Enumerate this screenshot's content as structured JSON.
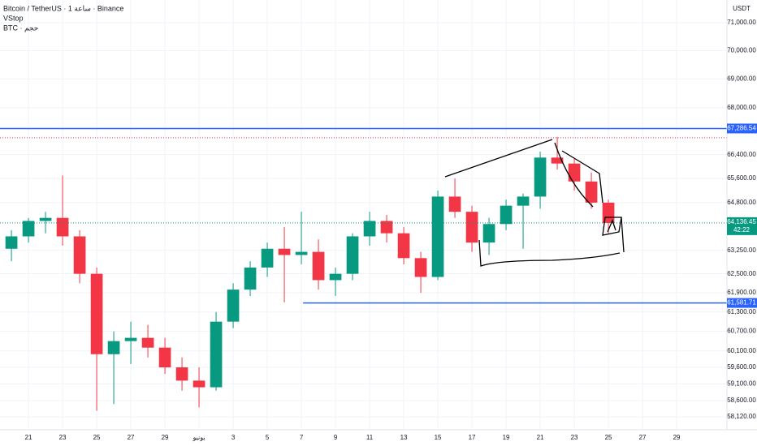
{
  "chart_data": {
    "type": "candlestick",
    "title": "Bitcoin / TetherUS · 1 ساعة · Binance",
    "indicator": "VStop",
    "volume_label": "BTC · حجم",
    "currency": "USDT",
    "log_scale": true,
    "grid": true,
    "up_color": "#089981",
    "down_color": "#f23645",
    "xlim": [
      -1.67,
      40.95
    ],
    "ylim": [
      57740,
      71824
    ],
    "xticks": [
      {
        "value": 0,
        "label": "21"
      },
      {
        "value": 2,
        "label": "23"
      },
      {
        "value": 4,
        "label": "25"
      },
      {
        "value": 6,
        "label": "27"
      },
      {
        "value": 8,
        "label": "29"
      },
      {
        "value": 10,
        "label": "يونيو"
      },
      {
        "value": 12,
        "label": "3"
      },
      {
        "value": 14,
        "label": "5"
      },
      {
        "value": 16,
        "label": "7"
      },
      {
        "value": 18,
        "label": "9"
      },
      {
        "value": 20,
        "label": "11"
      },
      {
        "value": 22,
        "label": "13"
      },
      {
        "value": 24,
        "label": "15"
      },
      {
        "value": 26,
        "label": "17"
      },
      {
        "value": 28,
        "label": "19"
      },
      {
        "value": 30,
        "label": "21"
      },
      {
        "value": 32,
        "label": "23"
      },
      {
        "value": 34,
        "label": "25"
      },
      {
        "value": 36,
        "label": "27"
      },
      {
        "value": 38,
        "label": "29"
      }
    ],
    "yticks": [
      {
        "value": 71000,
        "label": "71,000.00"
      },
      {
        "value": 70000,
        "label": "70,000.00"
      },
      {
        "value": 69000,
        "label": "69,000.00"
      },
      {
        "value": 68000,
        "label": "68,000.00"
      },
      {
        "value": 66400,
        "label": "66,400.00"
      },
      {
        "value": 65600,
        "label": "65,600.00"
      },
      {
        "value": 64800,
        "label": "64,800.00"
      },
      {
        "value": 63250,
        "label": "63,250.00"
      },
      {
        "value": 62500,
        "label": "62,500.00"
      },
      {
        "value": 61900,
        "label": "61,900.00"
      },
      {
        "value": 61300,
        "label": "61,300.00"
      },
      {
        "value": 60700,
        "label": "60,700.00"
      },
      {
        "value": 60100,
        "label": "60,100.00"
      },
      {
        "value": 59600,
        "label": "59,600.00"
      },
      {
        "value": 59100,
        "label": "59,100.00"
      },
      {
        "value": 58600,
        "label": "58,600.00"
      },
      {
        "value": 58120,
        "label": "58,120.00"
      }
    ],
    "x": [
      -1,
      0,
      1,
      2,
      3,
      4,
      5,
      6,
      7,
      8,
      9,
      10,
      11,
      12,
      13,
      14,
      15,
      16,
      17,
      18,
      19,
      20,
      21,
      22,
      23,
      24,
      25,
      26,
      27,
      28,
      29,
      30,
      31,
      32,
      33,
      34
    ],
    "open": [
      63300,
      63700,
      64200,
      64300,
      63700,
      62500,
      60000,
      60400,
      60500,
      60200,
      59600,
      59200,
      59000,
      61000,
      62000,
      62700,
      63300,
      63100,
      63200,
      62300,
      62500,
      63700,
      64200,
      63800,
      63000,
      62400,
      65000,
      64500,
      63500,
      64100,
      64700,
      65000,
      66300,
      66100,
      65500,
      64800
    ],
    "high": [
      63900,
      64300,
      64500,
      65700,
      63900,
      62700,
      60700,
      61000,
      60900,
      60500,
      59900,
      59600,
      61300,
      62200,
      62900,
      63500,
      64000,
      64500,
      63600,
      62700,
      63800,
      64500,
      64400,
      64000,
      63200,
      65200,
      65600,
      64700,
      64300,
      64900,
      65100,
      66500,
      67000,
      66300,
      65800,
      64900
    ],
    "low": [
      62900,
      63500,
      63800,
      63400,
      62200,
      58300,
      58500,
      59700,
      59900,
      59400,
      58900,
      58400,
      58900,
      60800,
      61800,
      62400,
      61600,
      62800,
      62000,
      61800,
      62300,
      63400,
      63500,
      62800,
      61900,
      62300,
      64300,
      63200,
      63100,
      63900,
      63300,
      64600,
      65900,
      65200,
      64600,
      63800
    ],
    "close": [
      63700,
      64200,
      64300,
      63700,
      62500,
      60000,
      60400,
      60500,
      60200,
      59600,
      59200,
      59000,
      61000,
      62000,
      62700,
      63300,
      63100,
      63200,
      62300,
      62500,
      63700,
      64200,
      63800,
      63000,
      62400,
      65000,
      64500,
      63500,
      64100,
      64700,
      65000,
      66300,
      66100,
      65500,
      64800,
      64136.45
    ],
    "price_lines": [
      {
        "value": 67286.54,
        "label": "67,286.54",
        "color": "#2962ff",
        "start": -1.67
      },
      {
        "value": 61581.71,
        "label": "61,581.71",
        "color": "#2962ff",
        "start": 16.1
      }
    ],
    "high_line": {
      "value": 66970,
      "color": "#f23645"
    },
    "last_price": {
      "value": 64136.45,
      "label": "64,136.45",
      "countdown": "42:22",
      "color": "#089981"
    }
  }
}
